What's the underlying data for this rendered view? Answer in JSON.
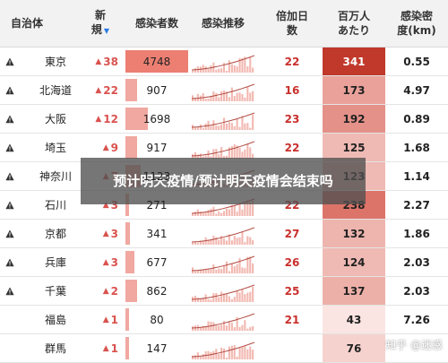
{
  "header": {
    "prefecture": "自治体",
    "new_line1": "新",
    "new_line2": "規",
    "cases": "感染者数",
    "trend": "感染推移",
    "double_line1": "倍加日",
    "double_line2": "数",
    "permillion_line1": "百万人",
    "permillion_line2": "あたり",
    "density_line1": "感染密",
    "density_line2": "度(km)"
  },
  "colors": {
    "accent_red": "#d9534f",
    "bar": "#f0a8a0",
    "header_bg": "#f2f2f2"
  },
  "rows": [
    {
      "warn": true,
      "pref": "東京",
      "new": "38",
      "cases": "4748",
      "cases_frac": 1.0,
      "double": "22",
      "permillion": "341",
      "pm_color": "#c0392b",
      "pm_text": "#ffffff",
      "density": "0.55",
      "density_color": "#222222"
    },
    {
      "warn": true,
      "pref": "北海道",
      "new": "22",
      "cases": "907",
      "cases_frac": 0.19,
      "double": "16",
      "permillion": "173",
      "pm_color": "#e9a19a",
      "pm_text": "#222222",
      "density": "4.97",
      "density_color": "#222222"
    },
    {
      "warn": true,
      "pref": "大阪",
      "new": "12",
      "cases": "1698",
      "cases_frac": 0.36,
      "double": "23",
      "permillion": "192",
      "pm_color": "#e49189",
      "pm_text": "#222222",
      "density": "0.89",
      "density_color": "#222222"
    },
    {
      "warn": true,
      "pref": "埼玉",
      "new": "9",
      "cases": "917",
      "cases_frac": 0.19,
      "double": "22",
      "permillion": "125",
      "pm_color": "#efbab4",
      "pm_text": "#222222",
      "density": "1.68",
      "density_color": "#222222"
    },
    {
      "warn": true,
      "pref": "神奈川",
      "new": "7",
      "cases": "1123",
      "cases_frac": 0.24,
      "double": "",
      "permillion": "123",
      "pm_color": "#efbab4",
      "pm_text": "#222222",
      "density": "1.14",
      "density_color": "#222222"
    },
    {
      "warn": true,
      "pref": "石川",
      "new": "3",
      "cases": "271",
      "cases_frac": 0.06,
      "double": "22",
      "permillion": "238",
      "pm_color": "#dc7469",
      "pm_text": "#222222",
      "density": "2.27",
      "density_color": "#222222"
    },
    {
      "warn": true,
      "pref": "京都",
      "new": "3",
      "cases": "341",
      "cases_frac": 0.07,
      "double": "27",
      "permillion": "132",
      "pm_color": "#eeb5ae",
      "pm_text": "#222222",
      "density": "1.86",
      "density_color": "#222222"
    },
    {
      "warn": true,
      "pref": "兵庫",
      "new": "3",
      "cases": "677",
      "cases_frac": 0.14,
      "double": "26",
      "permillion": "124",
      "pm_color": "#efbab4",
      "pm_text": "#222222",
      "density": "2.03",
      "density_color": "#222222"
    },
    {
      "warn": true,
      "pref": "千葉",
      "new": "2",
      "cases": "862",
      "cases_frac": 0.18,
      "double": "25",
      "permillion": "137",
      "pm_color": "#edb0a9",
      "pm_text": "#222222",
      "density": "2.03",
      "density_color": "#222222"
    },
    {
      "warn": false,
      "pref": "福島",
      "new": "1",
      "cases": "80",
      "cases_frac": 0.02,
      "double": "21",
      "permillion": "43",
      "pm_color": "#fae5e2",
      "pm_text": "#222222",
      "density": "7.26",
      "density_color": "#222222"
    },
    {
      "warn": false,
      "pref": "群馬",
      "new": "1",
      "cases": "147",
      "cases_frac": 0.03,
      "double": "",
      "permillion": "76",
      "pm_color": "#f6d2ce",
      "pm_text": "#222222",
      "density": "",
      "density_color": "#222222"
    }
  ],
  "overlay": {
    "headline": "预计明天疫情/预计明天疫情会结束吗"
  },
  "watermark": {
    "text": "知乎 @迷惑"
  }
}
